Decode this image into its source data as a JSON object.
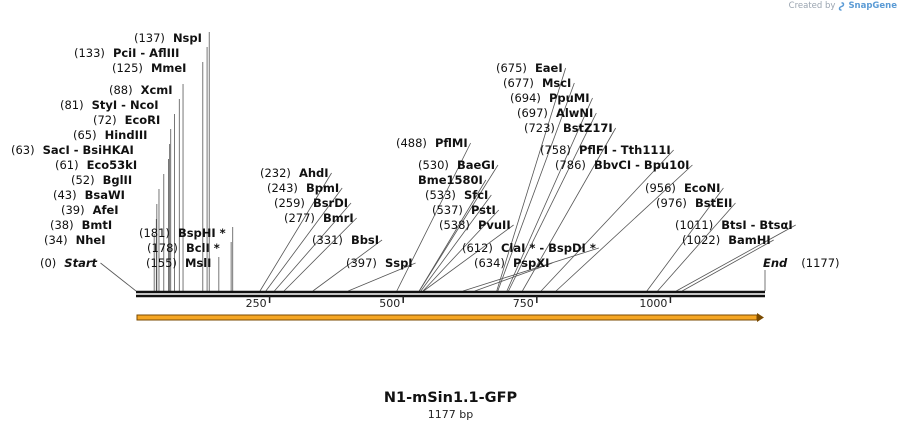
{
  "credit": {
    "prefix": "Created by",
    "brand": "SnapGene"
  },
  "map": {
    "title": "N1-mSin1.1-GFP",
    "length": "1177 bp",
    "total_bp": 1177
  },
  "axis": {
    "ticks": [
      "250",
      "500",
      "750",
      "1000"
    ]
  },
  "sites": [
    {
      "pos": "(0)",
      "name": "Start",
      "bp": 0,
      "italic": true
    },
    {
      "pos": "(34)",
      "name": "NheI",
      "bp": 34
    },
    {
      "pos": "(38)",
      "name": "BmtI",
      "bp": 38
    },
    {
      "pos": "(39)",
      "name": "AfeI",
      "bp": 39
    },
    {
      "pos": "(43)",
      "name": "BsaWI",
      "bp": 43
    },
    {
      "pos": "(52)",
      "name": "BglII",
      "bp": 52
    },
    {
      "pos": "(61)",
      "name": "Eco53kI",
      "bp": 61
    },
    {
      "pos": "(63)",
      "name": "SacI  - BsiHKAI",
      "bp": 63
    },
    {
      "pos": "(65)",
      "name": "HindIII",
      "bp": 65
    },
    {
      "pos": "(72)",
      "name": "EcoRI",
      "bp": 72
    },
    {
      "pos": "(81)",
      "name": "StyI  - NcoI",
      "bp": 81
    },
    {
      "pos": "(88)",
      "name": "XcmI",
      "bp": 88
    },
    {
      "pos": "(125)",
      "name": "MmeI",
      "bp": 125
    },
    {
      "pos": "(133)",
      "name": "PciI  - AflIII",
      "bp": 133
    },
    {
      "pos": "(137)",
      "name": "NspI",
      "bp": 137
    },
    {
      "pos": "(155)",
      "name": "MslI",
      "bp": 155
    },
    {
      "pos": "(178)",
      "name": "BclI *",
      "bp": 178
    },
    {
      "pos": "(181)",
      "name": "BspHI *",
      "bp": 181
    },
    {
      "pos": "(232)",
      "name": "AhdI",
      "bp": 232
    },
    {
      "pos": "(243)",
      "name": "BpmI",
      "bp": 243
    },
    {
      "pos": "(259)",
      "name": "BsrDI",
      "bp": 259
    },
    {
      "pos": "(277)",
      "name": "BmrI",
      "bp": 277
    },
    {
      "pos": "(331)",
      "name": "BbsI",
      "bp": 331
    },
    {
      "pos": "(397)",
      "name": "SspI",
      "bp": 397
    },
    {
      "pos": "(488)",
      "name": "PflMI",
      "bp": 488
    },
    {
      "pos": "(530)",
      "name": "BaeGI",
      "bp": 530
    },
    {
      "pos": "",
      "name": "Bme1580I",
      "bp": 530
    },
    {
      "pos": "(533)",
      "name": "SfcI",
      "bp": 533
    },
    {
      "pos": "(537)",
      "name": "PstI",
      "bp": 537
    },
    {
      "pos": "(538)",
      "name": "PvuII",
      "bp": 538
    },
    {
      "pos": "(612)",
      "name": "ClaI *  - BspDI *",
      "bp": 612
    },
    {
      "pos": "(634)",
      "name": "PspXI",
      "bp": 634
    },
    {
      "pos": "(675)",
      "name": "EaeI",
      "bp": 675
    },
    {
      "pos": "(677)",
      "name": "MscI",
      "bp": 677
    },
    {
      "pos": "(694)",
      "name": "PpuMI",
      "bp": 694
    },
    {
      "pos": "(697)",
      "name": "AlwNI",
      "bp": 697
    },
    {
      "pos": "(723)",
      "name": "BstZ17I",
      "bp": 723
    },
    {
      "pos": "(758)",
      "name": "PflFI  - Tth111I",
      "bp": 758
    },
    {
      "pos": "(786)",
      "name": "BbvCI  - Bpu10I",
      "bp": 786
    },
    {
      "pos": "(956)",
      "name": "EcoNI",
      "bp": 956
    },
    {
      "pos": "(976)",
      "name": "BstEII",
      "bp": 976
    },
    {
      "pos": "(1011)",
      "name": "BtsI  - BtsαI",
      "bp": 1011
    },
    {
      "pos": "(1022)",
      "name": "BamHI",
      "bp": 1022
    },
    {
      "pos": "(1177)",
      "name": "End",
      "bp": 1177,
      "italic": true
    }
  ],
  "colors": {
    "backbone": "#111111",
    "feature_fill": "#f5a623",
    "feature_stroke": "#7a4a00",
    "ticks": "#222222"
  }
}
